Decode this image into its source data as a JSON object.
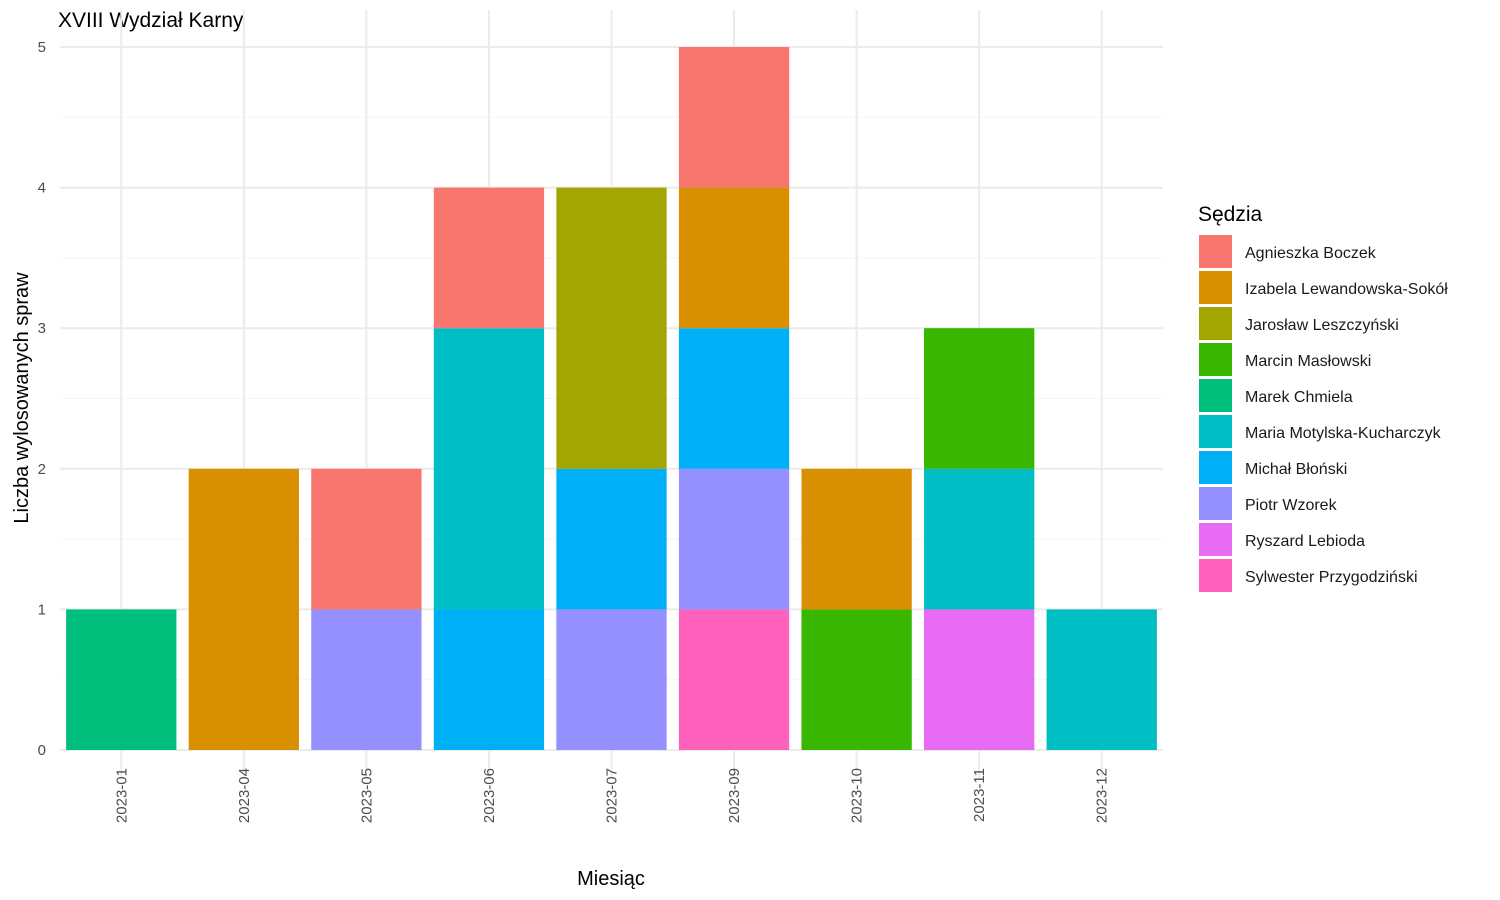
{
  "chart_data": {
    "type": "bar",
    "stacked": true,
    "title": "XVIII Wydział Karny",
    "xlabel": "Miesiąc",
    "ylabel": "Liczba wylosowanych spraw",
    "ylim": [
      0,
      5
    ],
    "yticks": [
      "0",
      "1",
      "2",
      "3",
      "4",
      "5"
    ],
    "grid": true,
    "legend_position": "right",
    "categories": [
      "2023-01",
      "2023-04",
      "2023-05",
      "2023-06",
      "2023-07",
      "2023-09",
      "2023-10",
      "2023-11",
      "2023-12"
    ],
    "legend": {
      "title": "Sędzia",
      "entries": [
        {
          "name": "Agnieszka Boczek",
          "color": "#F8766D"
        },
        {
          "name": "Izabela Lewandowska-Sokół",
          "color": "#D89000"
        },
        {
          "name": "Jarosław Leszczyński",
          "color": "#A3A500"
        },
        {
          "name": "Marcin Masłowski",
          "color": "#39B600"
        },
        {
          "name": "Marek Chmiela",
          "color": "#00BF7D"
        },
        {
          "name": "Maria Motylska-Kucharczyk",
          "color": "#00BFC4"
        },
        {
          "name": "Michał Błoński",
          "color": "#00B0F6"
        },
        {
          "name": "Piotr Wzorek",
          "color": "#9590FF"
        },
        {
          "name": "Ryszard Lebioda",
          "color": "#E76BF3"
        },
        {
          "name": "Sylwester Przygodziński",
          "color": "#FF62BC"
        }
      ]
    },
    "series": [
      {
        "name": "Agnieszka Boczek",
        "values": [
          0,
          0,
          1,
          1,
          0,
          1,
          0,
          0,
          0
        ]
      },
      {
        "name": "Izabela Lewandowska-Sokół",
        "values": [
          0,
          2,
          0,
          0,
          0,
          1,
          1,
          0,
          0
        ]
      },
      {
        "name": "Jarosław Leszczyński",
        "values": [
          0,
          0,
          0,
          0,
          2,
          0,
          0,
          0,
          0
        ]
      },
      {
        "name": "Marcin Masłowski",
        "values": [
          0,
          0,
          0,
          0,
          0,
          0,
          1,
          1,
          0
        ]
      },
      {
        "name": "Marek Chmiela",
        "values": [
          1,
          0,
          0,
          0,
          0,
          0,
          0,
          0,
          0
        ]
      },
      {
        "name": "Maria Motylska-Kucharczyk",
        "values": [
          0,
          0,
          0,
          2,
          0,
          0,
          0,
          1,
          1
        ]
      },
      {
        "name": "Michał Błoński",
        "values": [
          0,
          0,
          0,
          1,
          1,
          1,
          0,
          0,
          0
        ]
      },
      {
        "name": "Piotr Wzorek",
        "values": [
          0,
          0,
          1,
          0,
          1,
          1,
          0,
          0,
          0
        ]
      },
      {
        "name": "Ryszard Lebioda",
        "values": [
          0,
          0,
          0,
          0,
          0,
          0,
          0,
          1,
          0
        ]
      },
      {
        "name": "Sylwester Przygodziński",
        "values": [
          0,
          0,
          0,
          0,
          0,
          1,
          0,
          0,
          0
        ]
      }
    ]
  }
}
